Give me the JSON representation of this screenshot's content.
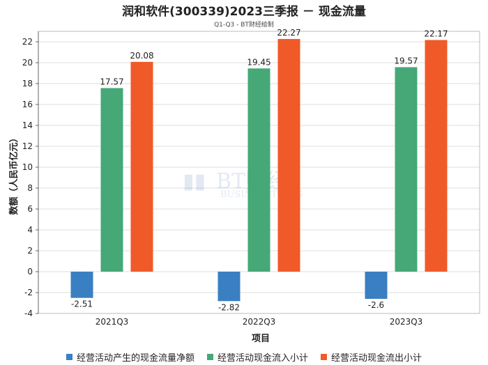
{
  "title": "润和软件(300339)2023三季报 － 现金流量",
  "subtitle": "Q1-Q3 - BT财经绘制",
  "watermark": {
    "main": "BT财经",
    "sub": "BUSINESSTIMES"
  },
  "colors": {
    "series1": "#3a7fc1",
    "series2": "#45a876",
    "series3": "#f05a28"
  },
  "chart_data": {
    "type": "bar",
    "categories": [
      "2021Q3",
      "2022Q3",
      "2023Q3"
    ],
    "series": [
      {
        "name": "经营活动产生的现金流量净额",
        "values": [
          -2.51,
          -2.82,
          -2.6
        ],
        "labels": [
          "-2.51",
          "-2.82",
          "-2.6"
        ]
      },
      {
        "name": "经营活动现金流入小计",
        "values": [
          17.57,
          19.45,
          19.57
        ],
        "labels": [
          "17.57",
          "19.45",
          "19.57"
        ]
      },
      {
        "name": "经营活动现金流出小计",
        "values": [
          20.08,
          22.27,
          22.17
        ],
        "labels": [
          "20.08",
          "22.27",
          "22.17"
        ]
      }
    ],
    "xlabel": "项目",
    "ylabel": "数额（人民币亿元）",
    "ylim": [
      -4,
      23
    ],
    "yticks": [
      -4,
      -2,
      0,
      2,
      4,
      6,
      8,
      10,
      12,
      14,
      16,
      18,
      20,
      22
    ],
    "grid": true,
    "legend": "bottom"
  }
}
